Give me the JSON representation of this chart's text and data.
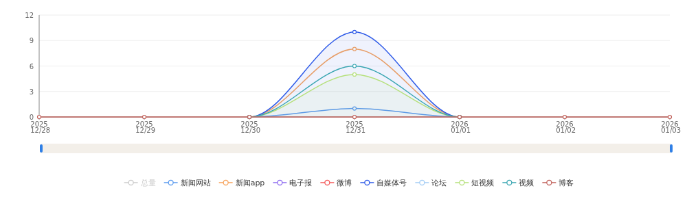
{
  "chart_data": {
    "type": "line",
    "categories": [
      "2025\n12/28",
      "2025\n12/29",
      "2025\n12/30",
      "2025\n12/31",
      "2026\n01/01",
      "2026\n01/02",
      "2026\n01/03"
    ],
    "ylim": [
      0,
      12
    ],
    "yticks": [
      0,
      3,
      6,
      9,
      12
    ],
    "grid": "y",
    "legend": "bottom",
    "marker": "circle",
    "series": [
      {
        "name": "总量",
        "color": "#cccccc",
        "values": [
          null,
          null,
          null,
          null,
          null,
          null,
          null
        ]
      },
      {
        "name": "新闻网站",
        "color": "#5b9bef",
        "values": [
          null,
          null,
          0,
          1,
          0,
          null,
          null
        ]
      },
      {
        "name": "新闻app",
        "color": "#f7a35c",
        "values": [
          null,
          null,
          0,
          8,
          0,
          null,
          null
        ]
      },
      {
        "name": "电子报",
        "color": "#8e6cf0",
        "values": [
          null,
          null,
          null,
          null,
          null,
          null,
          null
        ]
      },
      {
        "name": "微博",
        "color": "#f45b5b",
        "values": [
          null,
          null,
          null,
          null,
          null,
          null,
          null
        ]
      },
      {
        "name": "自媒体号",
        "type": "area",
        "color": "#2f5be8",
        "values": [
          null,
          null,
          0,
          10,
          0,
          null,
          null
        ]
      },
      {
        "name": "论坛",
        "color": "#a3cdf5",
        "values": [
          null,
          null,
          null,
          null,
          null,
          null,
          null
        ]
      },
      {
        "name": "短视频",
        "type": "area",
        "color": "#b5e07a",
        "values": [
          null,
          null,
          0,
          5,
          0,
          null,
          null
        ]
      },
      {
        "name": "视频",
        "color": "#3aa6b2",
        "values": [
          null,
          null,
          0,
          6,
          0,
          null,
          null
        ]
      },
      {
        "name": "博客",
        "color": "#c0605a",
        "values": [
          0,
          0,
          0,
          0,
          0,
          0,
          0
        ]
      }
    ]
  }
}
